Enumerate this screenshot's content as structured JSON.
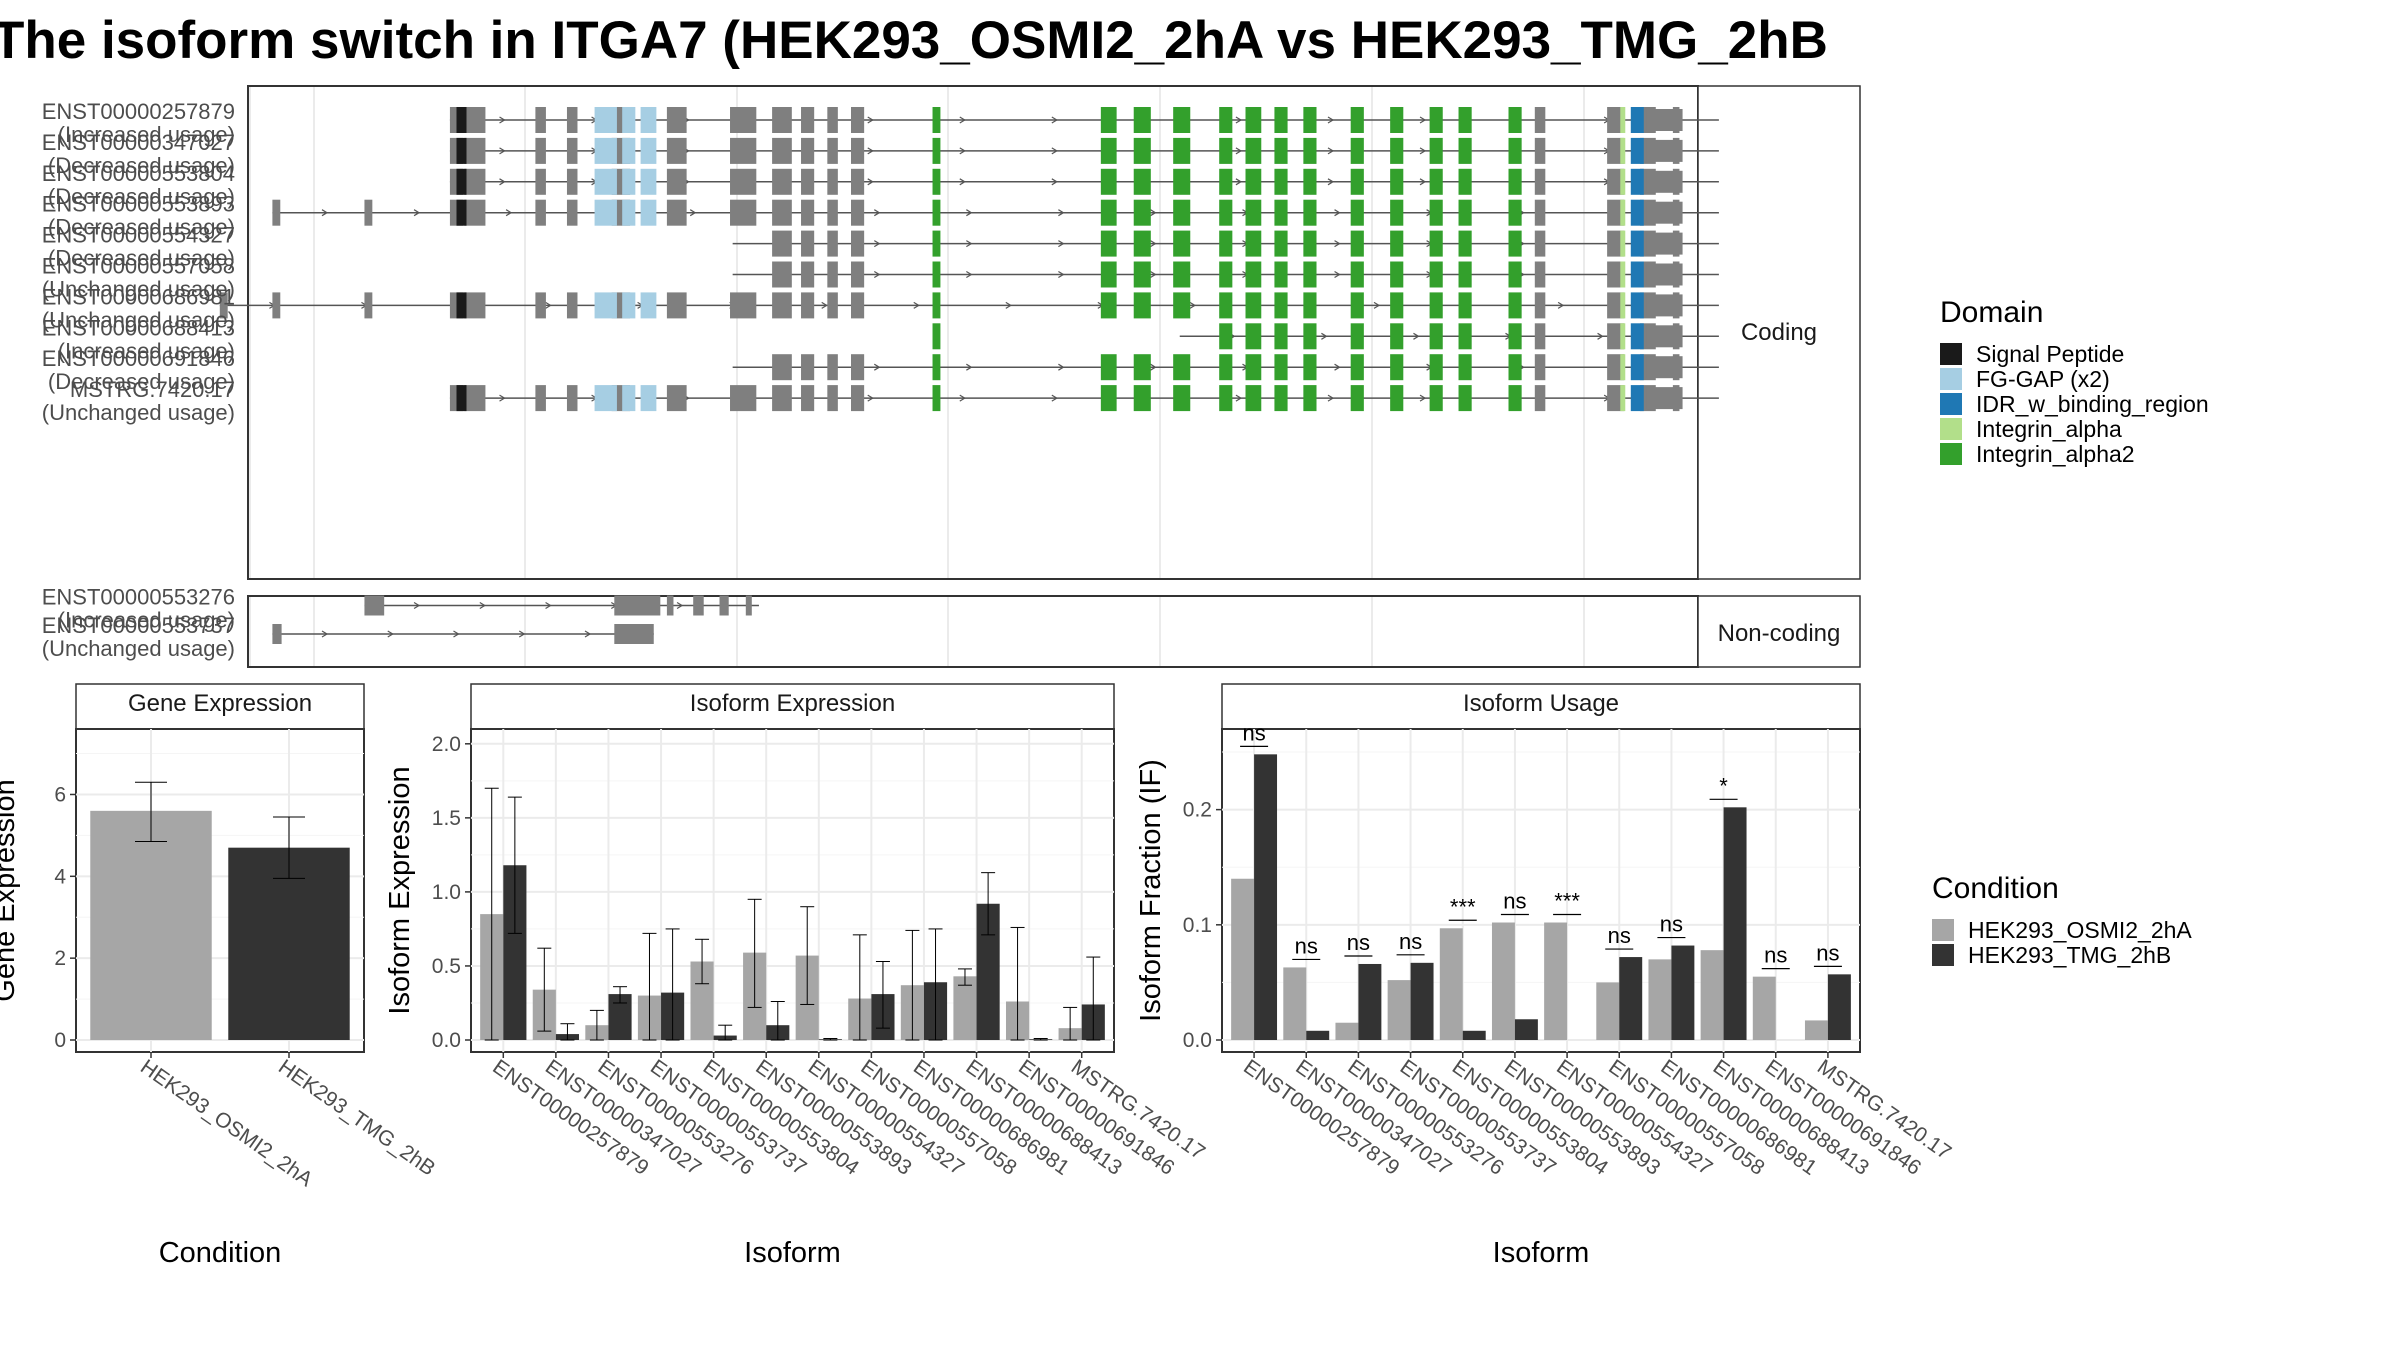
{
  "title": "The isoform switch in ITGA7 (HEK293_OSMI2_2hA vs HEK293_TMG_2hB",
  "colors": {
    "exon": "#7f7f7f",
    "cond1": "#a6a6a6",
    "cond2": "#333333",
    "Signal Peptide": "#1a1a1a",
    "FG-GAP (x2)": "#a6cee3",
    "IDR_w_binding_region": "#1f78b4",
    "Integrin_alpha": "#b2df8a",
    "Integrin_alpha2": "#33a02c"
  },
  "structure": {
    "coding_label": "Coding",
    "noncoding_label": "Non-coding",
    "coding": [
      {
        "id": "ENST00000257879",
        "status": "(Increased usage)",
        "start": 0.095
      },
      {
        "id": "ENST00000347027",
        "status": "(Decreased usage)",
        "start": 0.095
      },
      {
        "id": "ENST00000553804",
        "status": "(Decreased usage)",
        "start": 0.095
      },
      {
        "id": "ENST00000553893",
        "status": "(Decreased usage)",
        "start": -0.04
      },
      {
        "id": "ENST00000554327",
        "status": "(Decreased usage)",
        "start": 0.31
      },
      {
        "id": "ENST00000557058",
        "status": "(Unchanged usage)",
        "start": 0.31
      },
      {
        "id": "ENST00000686981",
        "status": "(Unchanged usage)",
        "start": -0.08
      },
      {
        "id": "ENST00000688413",
        "status": "(Increased usage)",
        "start": 0.65
      },
      {
        "id": "ENST00000691846",
        "status": "(Decreased usage)",
        "start": 0.31
      },
      {
        "id": "MSTRG.7420.17",
        "status": "(Unchanged usage)",
        "start": 0.095
      }
    ],
    "noncoding": [
      {
        "id": "ENST00000553276",
        "status": "(Increased usage)"
      },
      {
        "id": "ENST00000553737",
        "status": "(Unchanged usage)"
      }
    ]
  },
  "legend_domain": {
    "title": "Domain",
    "items": [
      "Signal Peptide",
      "FG-GAP (x2)",
      "IDR_w_binding_region",
      "Integrin_alpha",
      "Integrin_alpha2"
    ]
  },
  "legend_condition": {
    "title": "Condition",
    "items": [
      "HEK293_OSMI2_2hA",
      "HEK293_TMG_2hB"
    ]
  },
  "chart_data": [
    {
      "type": "bar",
      "title": "Gene Expression",
      "xlabel": "Condition",
      "ylabel": "Gene Expression",
      "ylim": [
        0,
        7.6
      ],
      "yticks": [
        0,
        2,
        4,
        6
      ],
      "categories": [
        "HEK293_OSMI2_2hA",
        "HEK293_TMG_2hB"
      ],
      "values": [
        5.6,
        4.7
      ],
      "error_low": [
        4.85,
        3.95
      ],
      "error_high": [
        6.3,
        5.45
      ]
    },
    {
      "type": "bar",
      "title": "Isoform Expression",
      "xlabel": "Isoform",
      "ylabel": "Isoform Expression",
      "ylim": [
        0,
        2.1
      ],
      "yticks": [
        0.0,
        0.5,
        1.0,
        1.5,
        2.0
      ],
      "categories": [
        "ENST00000257879",
        "ENST00000347027",
        "ENST00000553276",
        "ENST00000553737",
        "ENST00000553804",
        "ENST00000553893",
        "ENST00000554327",
        "ENST00000557058",
        "ENST00000686981",
        "ENST00000688413",
        "ENST00000691846",
        "MSTRG.7420.17"
      ],
      "series": [
        {
          "name": "HEK293_OSMI2_2hA",
          "values": [
            0.85,
            0.34,
            0.1,
            0.3,
            0.53,
            0.59,
            0.57,
            0.28,
            0.37,
            0.43,
            0.26,
            0.08
          ],
          "error_low": [
            0.0,
            0.06,
            0.0,
            0.0,
            0.38,
            0.22,
            0.24,
            0.0,
            0.0,
            0.37,
            0.0,
            0.0
          ],
          "error_high": [
            1.7,
            0.62,
            0.2,
            0.72,
            0.68,
            0.95,
            0.9,
            0.71,
            0.74,
            0.48,
            0.76,
            0.22
          ]
        },
        {
          "name": "HEK293_TMG_2hB",
          "values": [
            1.18,
            0.04,
            0.31,
            0.32,
            0.03,
            0.1,
            0.005,
            0.31,
            0.39,
            0.92,
            0.005,
            0.24
          ],
          "error_low": [
            0.72,
            0.0,
            0.25,
            0.0,
            0.0,
            0.0,
            0.0,
            0.08,
            0.0,
            0.71,
            0.0,
            0.0
          ],
          "error_high": [
            1.64,
            0.11,
            0.36,
            0.75,
            0.1,
            0.26,
            0.01,
            0.53,
            0.75,
            1.13,
            0.01,
            0.56
          ]
        }
      ]
    },
    {
      "type": "bar",
      "title": "Isoform Usage",
      "xlabel": "Isoform",
      "ylabel": "Isoform Fraction (IF)",
      "ylim": [
        0,
        0.27
      ],
      "yticks": [
        0.0,
        0.1,
        0.2
      ],
      "categories": [
        "ENST00000257879",
        "ENST00000347027",
        "ENST00000553276",
        "ENST00000553737",
        "ENST00000553804",
        "ENST00000553893",
        "ENST00000554327",
        "ENST00000557058",
        "ENST00000686981",
        "ENST00000688413",
        "ENST00000691846",
        "MSTRG.7420.17"
      ],
      "series": [
        {
          "name": "HEK293_OSMI2_2hA",
          "values": [
            0.14,
            0.063,
            0.015,
            0.052,
            0.097,
            0.102,
            0.102,
            0.05,
            0.07,
            0.078,
            0.055,
            0.017
          ]
        },
        {
          "name": "HEK293_TMG_2hB",
          "values": [
            0.248,
            0.008,
            0.066,
            0.067,
            0.008,
            0.018,
            0.0,
            0.072,
            0.082,
            0.202,
            0.0,
            0.057
          ]
        }
      ],
      "significance": [
        "ns",
        "ns",
        "ns",
        "ns",
        "***",
        "ns",
        "***",
        "ns",
        "ns",
        "*",
        "ns",
        "ns"
      ]
    }
  ]
}
